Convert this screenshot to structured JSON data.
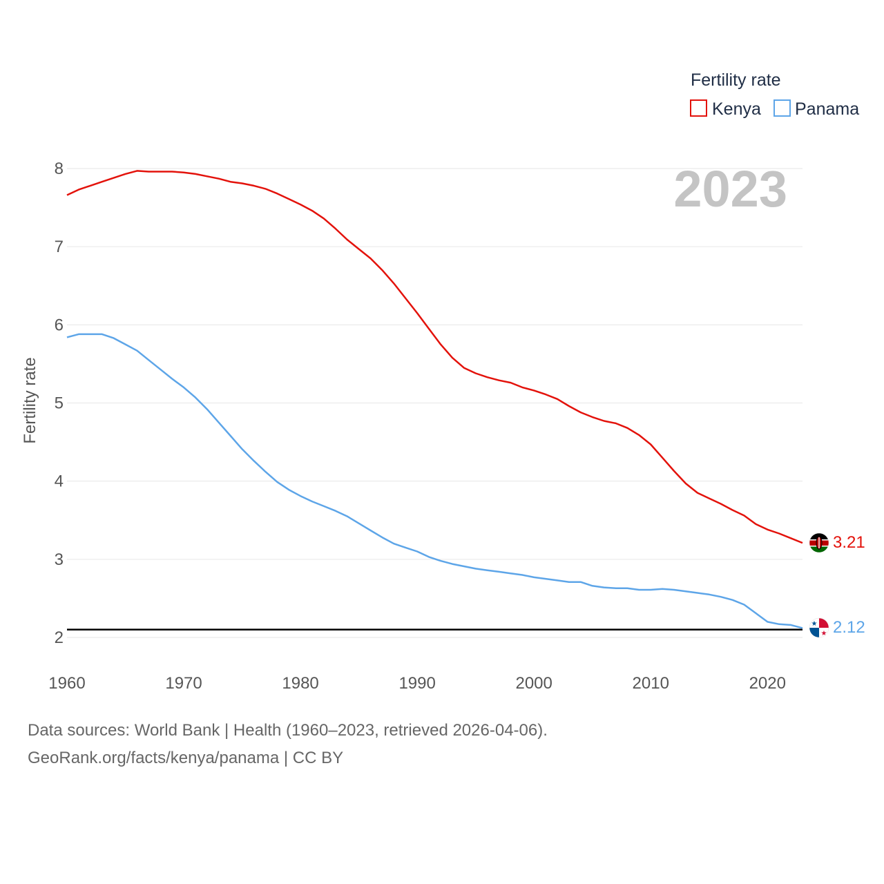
{
  "chart_data": {
    "type": "line",
    "title": "Fertility rate",
    "ylabel": "Fertility rate",
    "xlabel": "",
    "xlim": [
      1960,
      2023
    ],
    "ylim": [
      2,
      8
    ],
    "yticks": [
      2,
      3,
      4,
      5,
      6,
      7,
      8
    ],
    "xticks": [
      1960,
      1970,
      1980,
      1990,
      2000,
      2010,
      2020
    ],
    "year_overlay": "2023",
    "reference_line": 2.1,
    "legend": {
      "title": "Fertility rate",
      "position": "top-right"
    },
    "x": [
      1960,
      1961,
      1962,
      1963,
      1964,
      1965,
      1966,
      1967,
      1968,
      1969,
      1970,
      1971,
      1972,
      1973,
      1974,
      1975,
      1976,
      1977,
      1978,
      1979,
      1980,
      1981,
      1982,
      1983,
      1984,
      1985,
      1986,
      1987,
      1988,
      1989,
      1990,
      1991,
      1992,
      1993,
      1994,
      1995,
      1996,
      1997,
      1998,
      1999,
      2000,
      2001,
      2002,
      2003,
      2004,
      2005,
      2006,
      2007,
      2008,
      2009,
      2010,
      2011,
      2012,
      2013,
      2014,
      2015,
      2016,
      2017,
      2018,
      2019,
      2020,
      2021,
      2022,
      2023
    ],
    "series": [
      {
        "name": "Kenya",
        "color": "#e3120b",
        "end_label": "3.21",
        "flag": "kenya-flag",
        "values": [
          7.66,
          7.73,
          7.78,
          7.83,
          7.88,
          7.93,
          7.97,
          7.96,
          7.96,
          7.96,
          7.95,
          7.93,
          7.9,
          7.87,
          7.83,
          7.81,
          7.78,
          7.74,
          7.68,
          7.61,
          7.54,
          7.46,
          7.36,
          7.23,
          7.09,
          6.97,
          6.85,
          6.7,
          6.53,
          6.34,
          6.15,
          5.95,
          5.75,
          5.58,
          5.45,
          5.38,
          5.33,
          5.29,
          5.26,
          5.2,
          5.16,
          5.11,
          5.05,
          4.96,
          4.88,
          4.82,
          4.77,
          4.74,
          4.68,
          4.59,
          4.47,
          4.3,
          4.13,
          3.97,
          3.85,
          3.78,
          3.71,
          3.63,
          3.56,
          3.45,
          3.38,
          3.33,
          3.27,
          3.21
        ]
      },
      {
        "name": "Panama",
        "color": "#5da5e8",
        "end_label": "2.12",
        "flag": "panama-flag",
        "values": [
          5.84,
          5.88,
          5.88,
          5.88,
          5.83,
          5.75,
          5.67,
          5.55,
          5.43,
          5.31,
          5.2,
          5.07,
          4.92,
          4.75,
          4.58,
          4.41,
          4.26,
          4.12,
          3.99,
          3.89,
          3.81,
          3.74,
          3.68,
          3.62,
          3.55,
          3.46,
          3.37,
          3.28,
          3.2,
          3.15,
          3.1,
          3.03,
          2.98,
          2.94,
          2.91,
          2.88,
          2.86,
          2.84,
          2.82,
          2.8,
          2.77,
          2.75,
          2.73,
          2.71,
          2.71,
          2.66,
          2.64,
          2.63,
          2.63,
          2.61,
          2.61,
          2.62,
          2.61,
          2.59,
          2.57,
          2.55,
          2.52,
          2.48,
          2.42,
          2.31,
          2.2,
          2.17,
          2.16,
          2.12
        ]
      }
    ]
  },
  "footer": {
    "sources": "Data sources: World Bank | Health (1960–2023, retrieved 2026-04-06).",
    "attribution": "GeoRank.org/facts/kenya/panama | CC BY"
  }
}
